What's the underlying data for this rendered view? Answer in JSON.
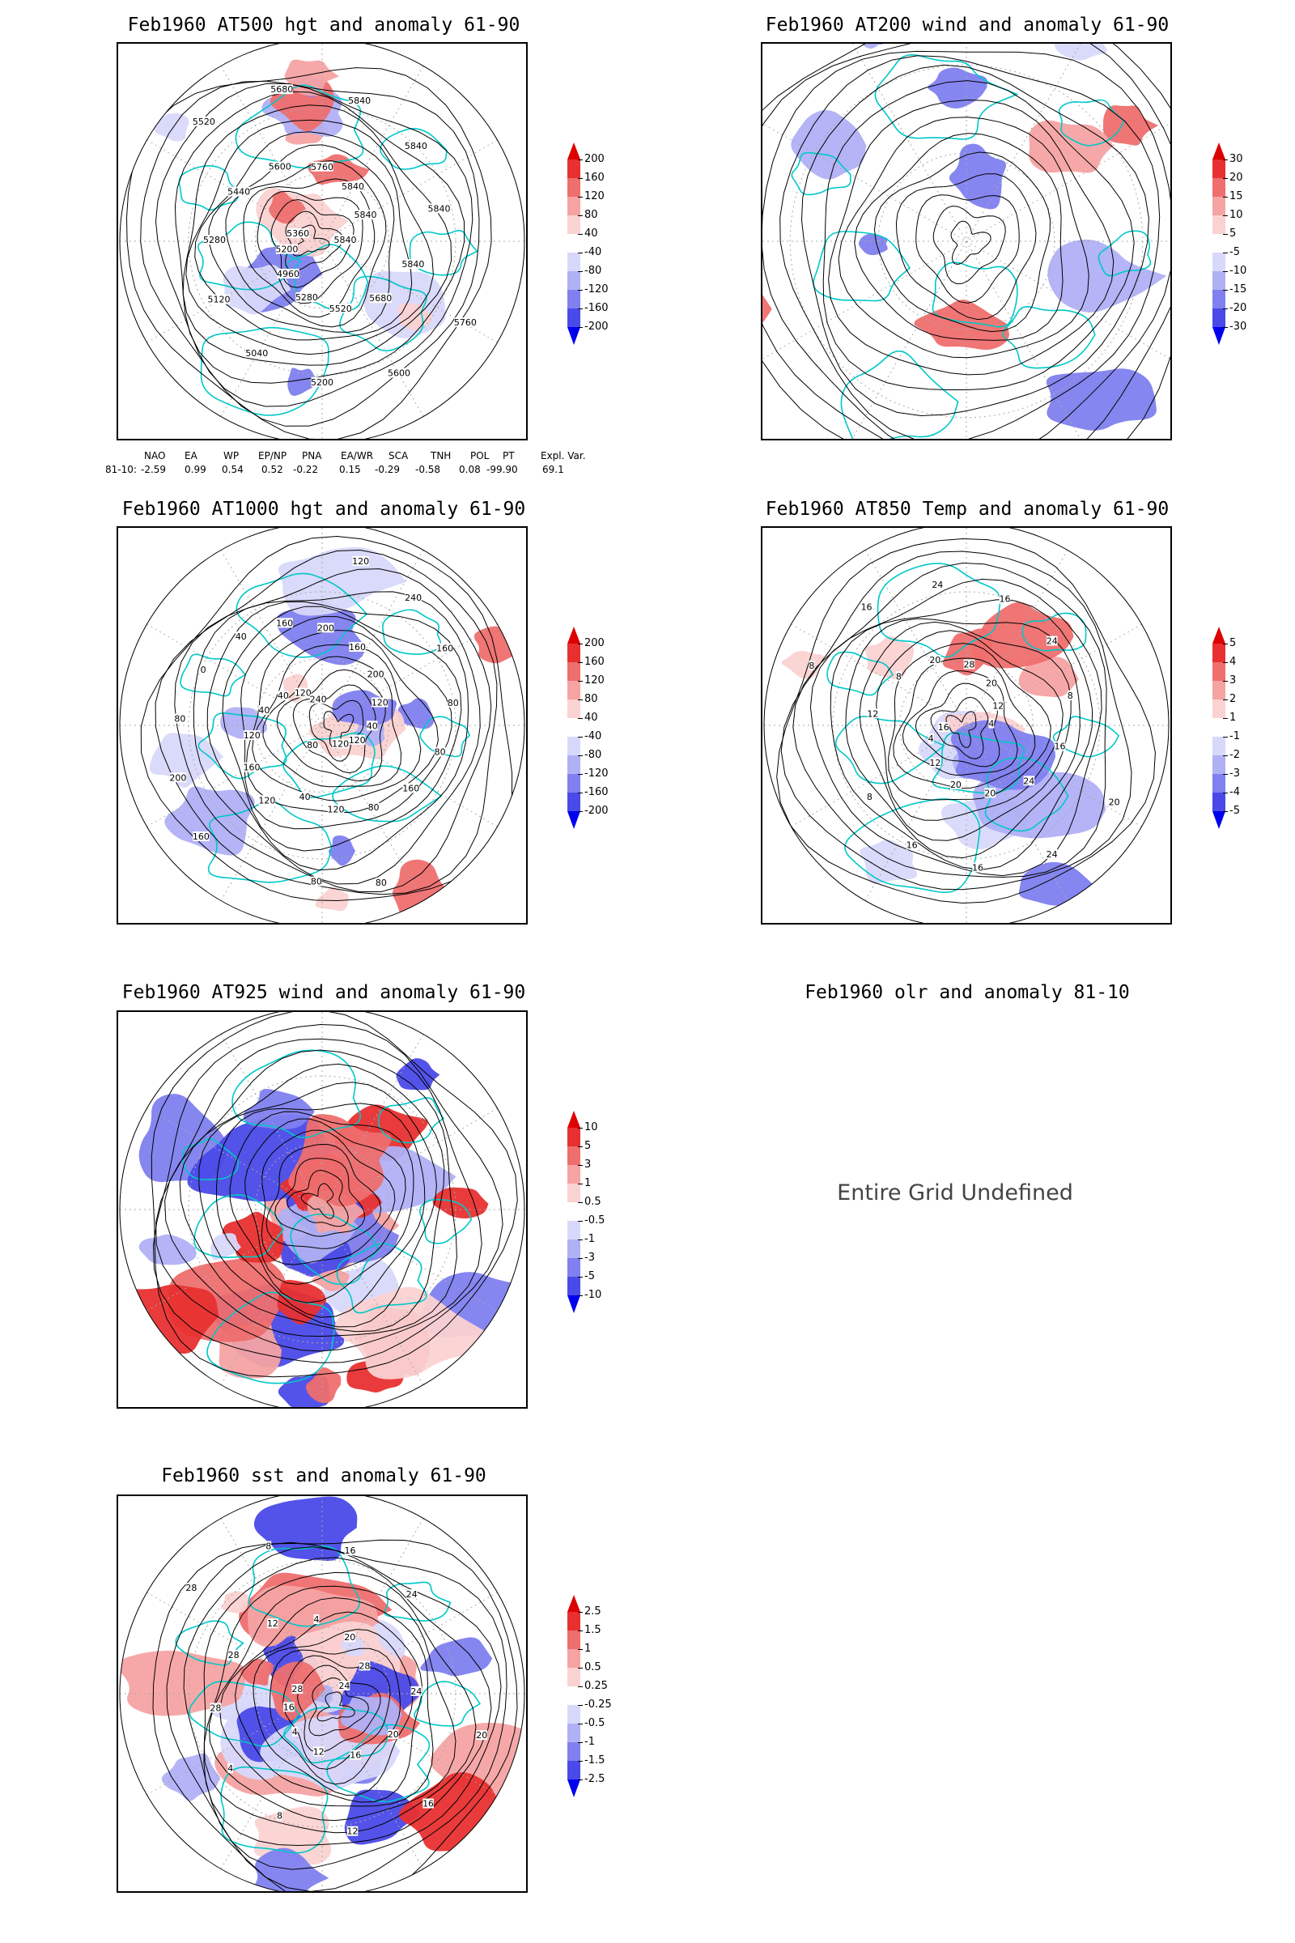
{
  "panels": [
    {
      "id": "p1",
      "title": "Feb1960 AT500 hgt and anomaly 61-90",
      "colorbar": [
        "200",
        "160",
        "120",
        "80",
        "40",
        "-40",
        "-80",
        "-120",
        "-160",
        "-200"
      ],
      "contour_labels": [
        "5840",
        "5840",
        "5760",
        "5680",
        "5600",
        "5520",
        "5200",
        "5280",
        "5040",
        "4960",
        "5120",
        "5200",
        "5280",
        "5360",
        "5440",
        "5520",
        "5600",
        "5680",
        "5760",
        "5840",
        "5840",
        "5840",
        "5840",
        "5840"
      ]
    },
    {
      "id": "p2",
      "title": "Feb1960 AT200 wind and anomaly 61-90",
      "colorbar": [
        "30",
        "20",
        "15",
        "10",
        "5",
        "-5",
        "-10",
        "-15",
        "-20",
        "-30"
      ],
      "contour_labels": []
    },
    {
      "id": "p3",
      "title": "Feb1960 AT1000 hgt and anomaly 61-90",
      "colorbar": [
        "200",
        "160",
        "120",
        "80",
        "40",
        "-40",
        "-80",
        "-120",
        "-160",
        "-200"
      ],
      "contour_labels": [
        "80",
        "120",
        "160",
        "160",
        "200",
        "120",
        "80",
        "40",
        "0",
        "40",
        "40",
        "120",
        "160",
        "240",
        "200",
        "120",
        "160",
        "240",
        "200",
        "160",
        "120",
        "80",
        "40",
        "80",
        "120",
        "160",
        "120",
        "80",
        "80",
        "120",
        "80",
        "40"
      ]
    },
    {
      "id": "p4",
      "title": "Feb1960 AT850 Temp and anomaly 61-90",
      "colorbar": [
        "5",
        "4",
        "3",
        "2",
        "1",
        "-1",
        "-2",
        "-3",
        "-4",
        "-5"
      ],
      "contour_labels": [
        "16",
        "12",
        "8",
        "8",
        "16",
        "20",
        "24",
        "28",
        "16",
        "20",
        "24",
        "12",
        "8",
        "4",
        "16",
        "20",
        "24",
        "24",
        "20",
        "16",
        "20",
        "16",
        "12",
        "8",
        "4"
      ]
    },
    {
      "id": "p5",
      "title": "Feb1960 AT925 wind and anomaly 61-90",
      "colorbar": [
        "10",
        "5",
        "3",
        "1",
        "0.5",
        "-0.5",
        "-1",
        "-3",
        "-5",
        "-10"
      ],
      "contour_labels": []
    },
    {
      "id": "p6",
      "title": "Feb1960 olr and anomaly 81-10",
      "colorbar": [],
      "contour_labels": [],
      "message": "Entire Grid Undefined"
    },
    {
      "id": "p7",
      "title": "Feb1960 sst and anomaly 61-90",
      "colorbar": [
        "2.5",
        "1.5",
        "1",
        "0.5",
        "0.25",
        "-0.25",
        "-0.5",
        "-1",
        "-1.5",
        "-2.5"
      ],
      "contour_labels": [
        "24",
        "24",
        "20",
        "20",
        "16",
        "16",
        "12",
        "12",
        "8",
        "4",
        "4",
        "16",
        "28",
        "28",
        "28",
        "28",
        "12",
        "8",
        "4",
        "16",
        "20",
        "24",
        "28"
      ]
    }
  ],
  "indices": {
    "header": [
      "NAO",
      "EA",
      "WP",
      "EP/NP",
      "PNA",
      "EA/WR",
      "SCA",
      "TNH",
      "POL",
      "PT",
      "Expl. Var."
    ],
    "row_label": "81-10:",
    "values": [
      "-2.59",
      "0.99",
      "0.54",
      "0.52",
      "-0.22",
      "0.15",
      "-0.29",
      "-0.58",
      "0.08",
      "-99.90",
      "69.1"
    ]
  },
  "colors": {
    "map_outline": "#00c8c8",
    "contour": "#000000",
    "positive_anomaly": [
      "#ffffff",
      "#fbd2d2",
      "#f5a3a3",
      "#ef6e6e",
      "#e83030",
      "#dd0000"
    ],
    "negative_anomaly": [
      "#ffffff",
      "#d8d8fb",
      "#b0b0f5",
      "#8080ef",
      "#4a4ae8",
      "#0000ee"
    ]
  }
}
